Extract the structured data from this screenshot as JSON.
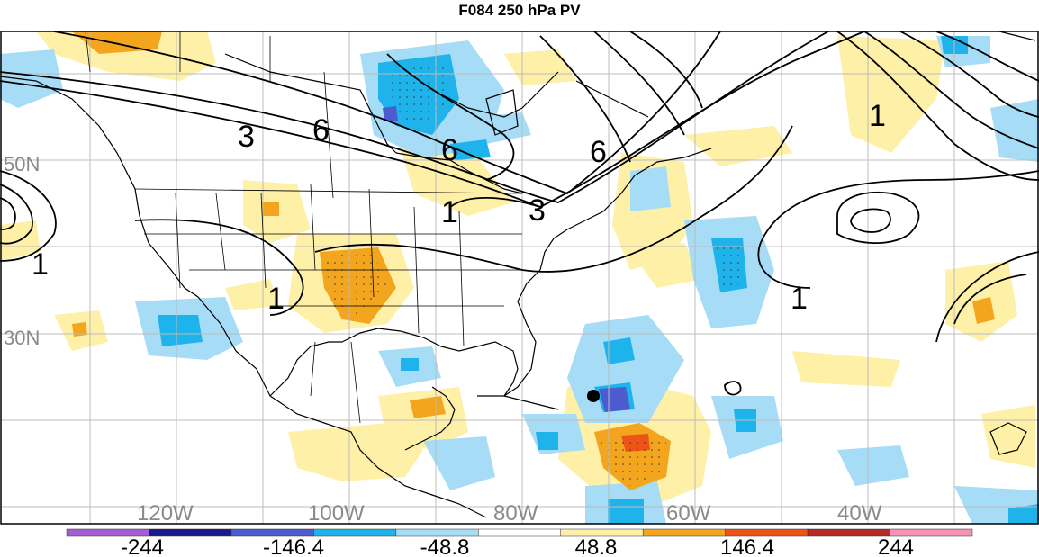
{
  "title": "F084 250 hPa PV",
  "lat_labels": [
    "50N",
    "30N"
  ],
  "lon_labels": [
    "120W",
    "100W",
    "80W",
    "60W",
    "40W"
  ],
  "contour_labels": [
    "3",
    "6",
    "6",
    "6",
    "1",
    "3",
    "1",
    "1",
    "1",
    "1"
  ],
  "colorbar": {
    "labels": [
      "-244",
      "-146.4",
      "-48.8",
      "48.8",
      "146.4",
      "244"
    ],
    "colors": [
      "#a55cd6",
      "#1a1a8c",
      "#4d5bd1",
      "#1fb3ec",
      "#a6dcf6",
      "#ffffff",
      "#fff0a8",
      "#f3a51e",
      "#ee5418",
      "#b72a2a",
      "#f692b8"
    ]
  },
  "colors": {
    "ocean_border": "#000000",
    "grid": "#bcbcbc"
  }
}
